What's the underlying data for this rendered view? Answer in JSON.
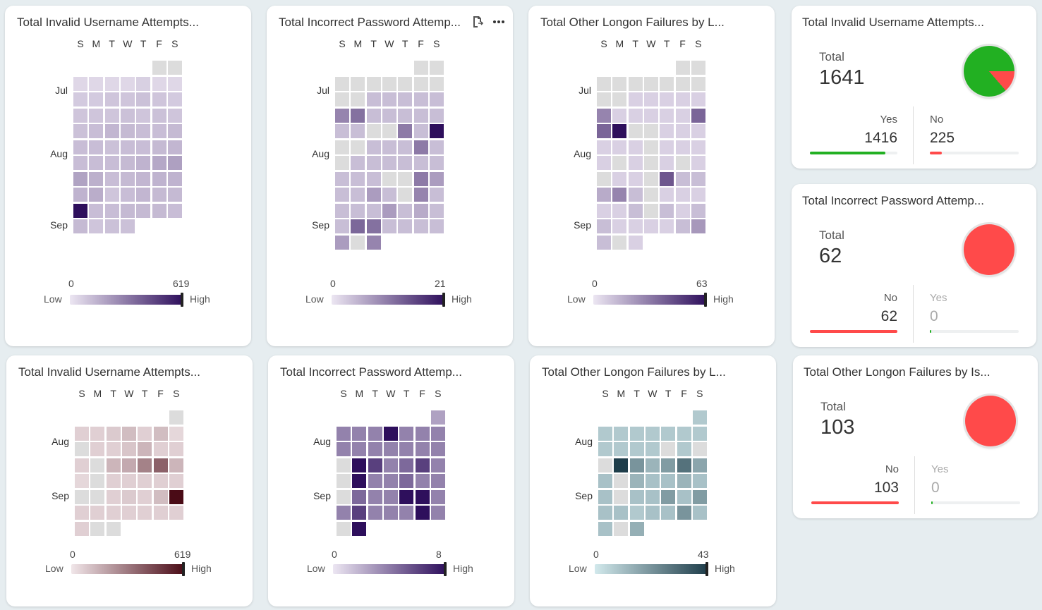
{
  "days": [
    "S",
    "M",
    "T",
    "W",
    "T",
    "F",
    "S"
  ],
  "legend": {
    "low": "Low",
    "high": "High"
  },
  "calendars": [
    {
      "title": "Total Invalid Username Attempts...",
      "months": [
        "Jul",
        "Aug",
        "Sep"
      ],
      "min": "0",
      "max": "619",
      "theme": "purple",
      "first_dow": 5,
      "tools": false,
      "values": [
        0,
        0,
        5,
        5,
        5,
        5,
        10,
        5,
        5,
        15,
        15,
        20,
        20,
        25,
        20,
        15,
        20,
        20,
        20,
        25,
        20,
        25,
        20,
        25,
        30,
        40,
        35,
        30,
        30,
        35,
        30,
        30,
        25,
        30,
        30,
        35,
        40,
        30,
        30,
        30,
        35,
        45,
        65,
        80,
        75,
        50,
        30,
        35,
        40,
        45,
        45,
        45,
        55,
        20,
        30,
        40,
        35,
        35,
        619,
        30,
        30,
        35,
        35,
        35,
        30,
        35,
        20,
        25,
        25
      ]
    },
    {
      "title": "Total Incorrect Password Attemp...",
      "months": [
        "Jul",
        "Aug",
        "Sep"
      ],
      "min": "0",
      "max": "21",
      "theme": "purple",
      "first_dow": 5,
      "tools": true,
      "values": [
        0,
        0,
        0,
        0,
        0,
        0,
        0,
        0,
        0,
        0,
        0,
        1,
        1,
        1,
        1,
        1,
        5,
        7,
        1,
        1,
        1,
        1,
        1,
        1,
        1,
        0,
        0,
        6,
        1,
        21,
        0,
        0,
        1,
        1,
        1,
        6,
        1,
        0,
        1,
        1,
        1,
        1,
        1,
        1,
        1,
        1,
        1,
        0,
        0,
        6,
        3,
        1,
        1,
        3,
        1,
        0,
        5,
        1,
        1,
        1,
        1,
        3,
        1,
        2,
        1,
        1,
        8,
        7,
        1,
        1,
        1,
        1,
        3,
        0,
        5
      ]
    },
    {
      "title": "Total Other Longon Failures by L...",
      "months": [
        "Jul",
        "Aug",
        "Sep"
      ],
      "min": "0",
      "max": "63",
      "theme": "purple",
      "first_dow": 5,
      "tools": false,
      "values": [
        0,
        0,
        0,
        0,
        0,
        0,
        0,
        0,
        0,
        0,
        0,
        1,
        1,
        1,
        1,
        1,
        15,
        1,
        1,
        1,
        1,
        1,
        25,
        25,
        63,
        0,
        0,
        1,
        1,
        1,
        1,
        1,
        1,
        0,
        1,
        1,
        1,
        1,
        0,
        1,
        0,
        1,
        0,
        1,
        0,
        1,
        1,
        0,
        30,
        3,
        3,
        6,
        15,
        3,
        0,
        1,
        1,
        1,
        1,
        1,
        3,
        0,
        3,
        1,
        3,
        3,
        1,
        1,
        1,
        1,
        3,
        10,
        3,
        0,
        1
      ]
    },
    {
      "title": "Total Invalid Username Attempts...",
      "months": [
        "Aug",
        "Sep"
      ],
      "min": "0",
      "max": "619",
      "theme": "maroon",
      "first_dow": 6,
      "tools": false,
      "values": [
        0,
        10,
        10,
        15,
        30,
        10,
        30,
        5,
        0,
        10,
        10,
        20,
        40,
        10,
        10,
        10,
        0,
        40,
        60,
        150,
        250,
        40,
        5,
        0,
        10,
        10,
        10,
        10,
        10,
        0,
        0,
        10,
        15,
        10,
        30,
        619,
        10,
        10,
        10,
        10,
        10,
        10,
        10,
        10,
        0,
        0
      ]
    },
    {
      "title": "Total Incorrect Password Attemp...",
      "months": [
        "Aug",
        "Sep"
      ],
      "min": "0",
      "max": "8",
      "theme": "purple",
      "first_dow": 6,
      "tools": false,
      "values": [
        1,
        2,
        2,
        2,
        8,
        2,
        2,
        2,
        2,
        2,
        2,
        2,
        2,
        2,
        2,
        0,
        8,
        5,
        2,
        3,
        5,
        2,
        0,
        8,
        2,
        2,
        3,
        2,
        2,
        0,
        3,
        2,
        2,
        8,
        8,
        2,
        2,
        5,
        2,
        2,
        2,
        8,
        2,
        0,
        8
      ]
    },
    {
      "title": "Total Other Longon Failures by L...",
      "months": [
        "Aug",
        "Sep"
      ],
      "min": "0",
      "max": "43",
      "theme": "teal",
      "first_dow": 6,
      "tools": false,
      "values": [
        2,
        2,
        2,
        2,
        2,
        2,
        2,
        2,
        2,
        2,
        2,
        2,
        0,
        2,
        0,
        0,
        43,
        12,
        5,
        10,
        22,
        8,
        3,
        0,
        5,
        3,
        3,
        5,
        3,
        3,
        0,
        3,
        3,
        10,
        3,
        10,
        3,
        3,
        2,
        3,
        3,
        12,
        3,
        3,
        0,
        6
      ]
    }
  ],
  "kpis": [
    {
      "title": "Total Invalid Username Attempts...",
      "total_label": "Total",
      "total": "1641",
      "pie": "yes_no",
      "seg1": {
        "label": "Yes",
        "value": "1416",
        "color": "#22b022",
        "pct": 86.3
      },
      "seg2": {
        "label": "No",
        "value": "225",
        "color": "#ff4a4a",
        "pct": 13.7
      }
    },
    {
      "title": "Total Incorrect Password Attemp...",
      "total_label": "Total",
      "total": "62",
      "pie": "no",
      "seg1": {
        "label": "No",
        "value": "62",
        "color": "#ff4a4a",
        "pct": 100
      },
      "seg2": {
        "label": "Yes",
        "value": "0",
        "color": "#22b022",
        "pct": 0
      }
    },
    {
      "title": "Total Other Longon Failures by Is...",
      "total_label": "Total",
      "total": "103",
      "pie": "no",
      "seg1": {
        "label": "No",
        "value": "103",
        "color": "#ff4a4a",
        "pct": 100
      },
      "seg2": {
        "label": "Yes",
        "value": "0",
        "color": "#22b022",
        "pct": 0
      }
    }
  ],
  "colors": {
    "empty": "#dcdcdc",
    "purple_low": "#ece6f2",
    "purple_high": "#2e0f5c",
    "maroon_low": "#f1e6e9",
    "maroon_high": "#4a0b16",
    "teal_low": "#d2e9ec",
    "teal_high": "#1e3d4a",
    "yes": "#22b022",
    "no": "#ff4a4a"
  }
}
